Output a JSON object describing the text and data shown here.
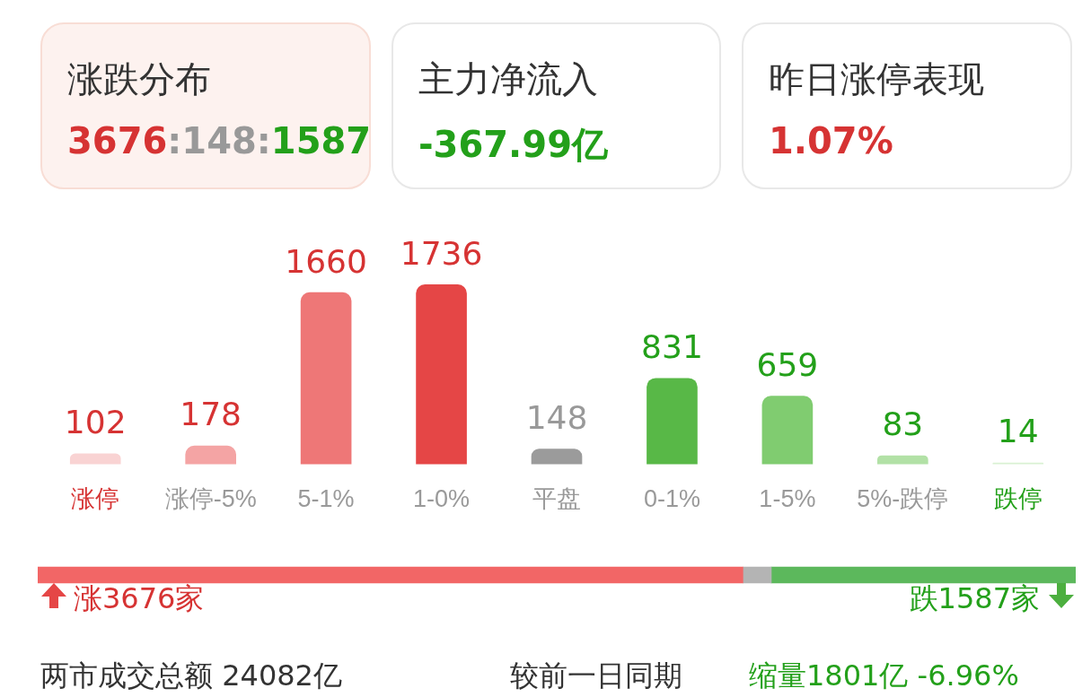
{
  "chart_data": [
    {
      "type": "other",
      "annotations": [
        "涨跌分布",
        "3676:148:1587",
        "主力净流入",
        "-367.99亿",
        "昨日涨停表现",
        "1.07%"
      ]
    },
    {
      "type": "bar",
      "categories": [
        "涨停",
        "涨停-5%",
        "5-1%",
        "1-0%",
        "平盘",
        "0-1%",
        "1-5%",
        "5%-跌停",
        "跌停"
      ],
      "values": [
        102,
        178,
        1660,
        1736,
        148,
        831,
        659,
        83,
        14
      ],
      "colors": [
        "#f9d3d3",
        "#f4a4a4",
        "#ee7777",
        "#e54646",
        "#9b9b9b",
        "#58b847",
        "#80cc70",
        "#b2e1a6",
        "#d9f1d3"
      ],
      "data_labels": true
    },
    {
      "type": "bar",
      "orientation": "horizontal",
      "stacked": true,
      "tick_labels": false,
      "categories": [
        null
      ],
      "series": [
        {
          "color": "#f26666",
          "values": [
            3676
          ],
          "value_labels": [
            "涨3676家"
          ]
        },
        {
          "color": "#b4b4b4",
          "values": [
            148
          ],
          "value_labels": [
            null
          ]
        },
        {
          "color": "#5cb85c",
          "values": [
            1587
          ],
          "value_labels": [
            "跌1587家"
          ]
        }
      ],
      "annotations": [
        "两市成交总额  24082亿",
        "较前一日同期",
        "缩量1801亿  -6.96%"
      ]
    }
  ]
}
